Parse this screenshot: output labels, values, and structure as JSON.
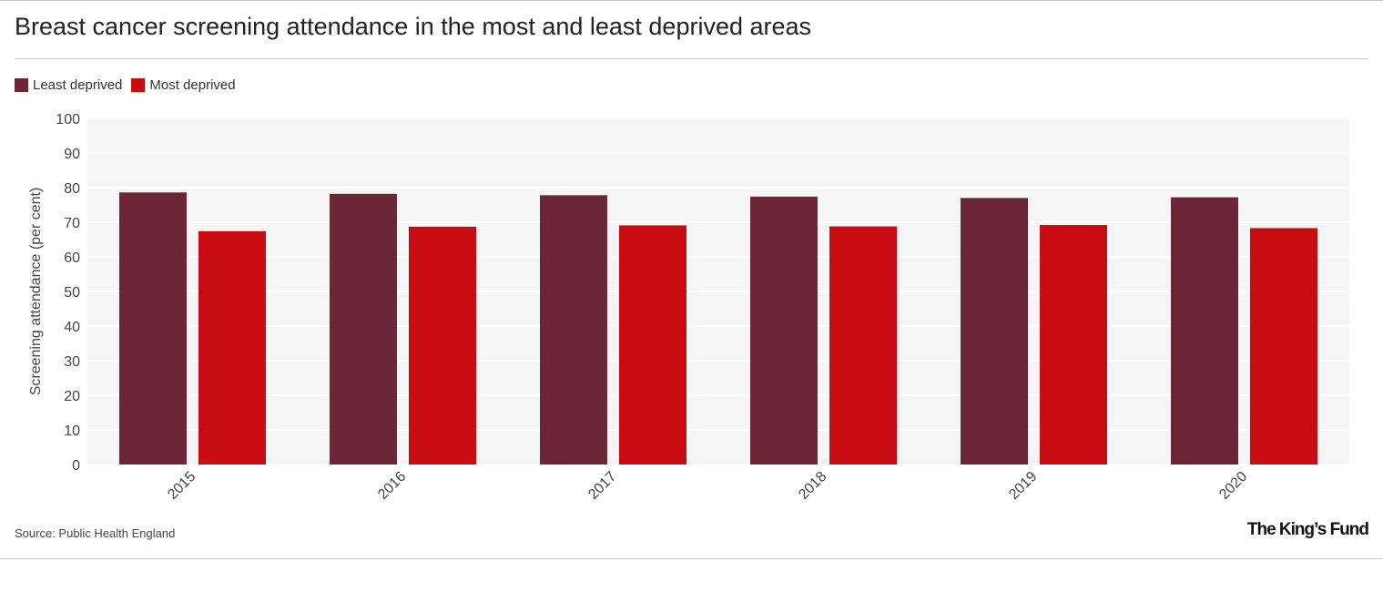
{
  "header": {
    "title": "Breast cancer screening attendance in the most and least deprived areas"
  },
  "footer": {
    "source": "Source: Public Health England",
    "brand": "The King’s Fund"
  },
  "colors": {
    "least_deprived": "#6b2638",
    "most_deprived": "#c80d12",
    "plot_background": "#f5f5f5",
    "gridline": "#ffffff"
  },
  "chart_data": {
    "type": "bar",
    "title": "Breast cancer screening attendance in the most and least deprived areas",
    "xlabel": "",
    "ylabel": "Screening attendance (per cent)",
    "ylim": [
      0,
      100
    ],
    "yticks": [
      0,
      10,
      20,
      30,
      40,
      50,
      60,
      70,
      80,
      90,
      100
    ],
    "categories": [
      "2015",
      "2016",
      "2017",
      "2018",
      "2019",
      "2020"
    ],
    "grid": true,
    "legend_position": "top-left",
    "series": [
      {
        "name": "Least deprived",
        "color": "#6b2638",
        "values": [
          78.6,
          78.2,
          77.8,
          77.4,
          77.0,
          77.2
        ]
      },
      {
        "name": "Most deprived",
        "color": "#c80d12",
        "values": [
          67.4,
          68.7,
          69.1,
          68.8,
          69.2,
          68.3
        ]
      }
    ]
  }
}
